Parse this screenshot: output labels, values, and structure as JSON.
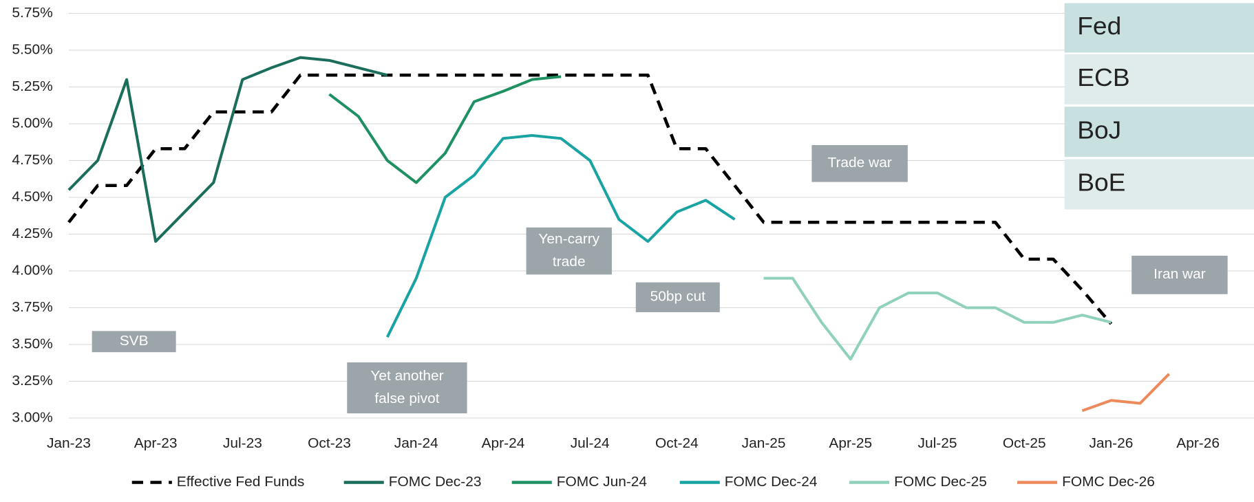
{
  "chart_data": {
    "type": "line",
    "x": [
      "Jan-23",
      null,
      null,
      "Apr-23",
      null,
      null,
      "Jul-23",
      null,
      null,
      "Oct-23",
      null,
      null,
      "Jan-24",
      null,
      null,
      "Apr-24",
      null,
      null,
      "Jul-24",
      null,
      null,
      "Oct-24",
      null,
      null,
      "Jan-25",
      null,
      null,
      "Apr-25",
      null,
      null,
      "Jul-25",
      null,
      null,
      "Oct-25",
      null,
      null,
      "Jan-26",
      null,
      null,
      "Apr-26"
    ],
    "ylim": [
      3.0,
      5.75
    ],
    "yticks": [
      {
        "value": 3.0,
        "label": "3.00%"
      },
      {
        "value": 3.25,
        "label": "3.25%"
      },
      {
        "value": 3.5,
        "label": "3.50%"
      },
      {
        "value": 3.75,
        "label": "3.75%"
      },
      {
        "value": 4.0,
        "label": "4.00%"
      },
      {
        "value": 4.25,
        "label": "4.25%"
      },
      {
        "value": 4.5,
        "label": "4.50%"
      },
      {
        "value": 4.75,
        "label": "4.75%"
      },
      {
        "value": 5.0,
        "label": "5.00%"
      },
      {
        "value": 5.25,
        "label": "5.25%"
      },
      {
        "value": 5.5,
        "label": "5.50%"
      },
      {
        "value": 5.75,
        "label": "5.75%"
      }
    ],
    "grid": true,
    "legend": "bottom",
    "series": [
      {
        "name": "Effective Fed Funds",
        "color": "#000000",
        "style": "dashed",
        "values": [
          4.33,
          4.58,
          4.58,
          4.83,
          4.83,
          5.08,
          5.08,
          5.08,
          5.33,
          5.33,
          5.33,
          5.33,
          5.33,
          5.33,
          5.33,
          5.33,
          5.33,
          5.33,
          5.33,
          5.33,
          5.33,
          4.83,
          4.83,
          4.58,
          4.33,
          4.33,
          4.33,
          4.33,
          4.33,
          4.33,
          4.33,
          4.33,
          4.33,
          4.08,
          4.08,
          3.87,
          3.64,
          null,
          null,
          null
        ]
      },
      {
        "name": "FOMC Dec-23",
        "color": "#1b6e5c",
        "style": "solid",
        "values": [
          4.55,
          4.75,
          5.3,
          4.2,
          4.4,
          4.6,
          5.3,
          5.38,
          5.45,
          5.43,
          5.38,
          5.33,
          null,
          null,
          null,
          null,
          null,
          null,
          null,
          null,
          null,
          null,
          null,
          null,
          null,
          null,
          null,
          null,
          null,
          null,
          null,
          null,
          null,
          null,
          null,
          null,
          null,
          null,
          null,
          null
        ]
      },
      {
        "name": "FOMC Jun-24",
        "color": "#1e9163",
        "style": "solid",
        "values": [
          null,
          null,
          null,
          null,
          null,
          null,
          null,
          null,
          null,
          5.2,
          5.05,
          4.75,
          4.6,
          4.8,
          5.15,
          5.22,
          5.3,
          5.32,
          null,
          null,
          null,
          null,
          null,
          null,
          null,
          null,
          null,
          null,
          null,
          null,
          null,
          null,
          null,
          null,
          null,
          null,
          null,
          null,
          null,
          null
        ]
      },
      {
        "name": "FOMC Dec-24",
        "color": "#1aa3a3",
        "style": "solid",
        "values": [
          null,
          null,
          null,
          null,
          null,
          null,
          null,
          null,
          null,
          null,
          null,
          3.55,
          3.95,
          4.5,
          4.65,
          4.9,
          4.92,
          4.9,
          4.75,
          4.35,
          4.2,
          4.4,
          4.48,
          4.35,
          null,
          null,
          null,
          null,
          null,
          null,
          null,
          null,
          null,
          null,
          null,
          null,
          null,
          null,
          null,
          null
        ]
      },
      {
        "name": "FOMC Dec-25",
        "color": "#8fd1bc",
        "style": "solid",
        "values": [
          null,
          null,
          null,
          null,
          null,
          null,
          null,
          null,
          null,
          null,
          null,
          null,
          null,
          null,
          null,
          null,
          null,
          null,
          null,
          null,
          null,
          null,
          null,
          null,
          3.95,
          3.95,
          3.65,
          3.4,
          3.75,
          3.85,
          3.85,
          3.75,
          3.75,
          3.65,
          3.65,
          3.7,
          3.65,
          null,
          null,
          null
        ]
      },
      {
        "name": "FOMC Dec-26",
        "color": "#ec8a5c",
        "style": "solid",
        "values": [
          null,
          null,
          null,
          null,
          null,
          null,
          null,
          null,
          null,
          null,
          null,
          null,
          null,
          null,
          null,
          null,
          null,
          null,
          null,
          null,
          null,
          null,
          null,
          null,
          null,
          null,
          null,
          null,
          null,
          null,
          null,
          null,
          null,
          null,
          null,
          3.05,
          3.12,
          3.1,
          3.3,
          null
        ]
      }
    ],
    "annotations": [
      [
        "SVB"
      ],
      [
        "Yet another",
        "false pivot"
      ],
      [
        "Yen-carry",
        "trade"
      ],
      [
        "50bp cut"
      ],
      [
        "Trade war"
      ],
      [
        "Iran war"
      ]
    ]
  },
  "tabs": [
    "Fed",
    "ECB",
    "BoJ",
    "BoE"
  ]
}
